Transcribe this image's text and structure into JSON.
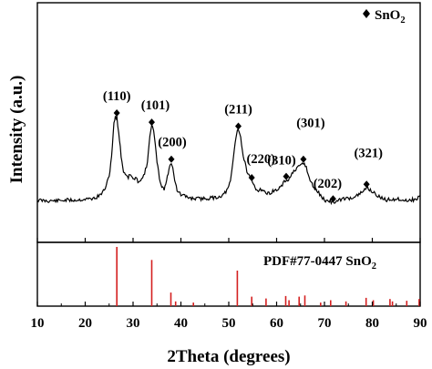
{
  "chart_data": [
    {
      "type": "line",
      "xlabel": "2Theta (degrees)",
      "ylabel": "Intensity (a.u.)",
      "xlim": [
        10,
        90
      ],
      "x_ticks": [
        "10",
        "20",
        "30",
        "40",
        "50",
        "60",
        "70",
        "80",
        "90"
      ],
      "legend": {
        "marker": "diamond",
        "label": "SnO",
        "subscript": "2",
        "position": "top-right"
      },
      "series": [
        {
          "x": [
            10,
            12,
            14,
            16,
            18,
            20,
            21,
            22,
            23,
            24,
            25,
            25.5,
            26,
            26.3,
            26.6,
            27,
            27.5,
            28,
            29,
            29.5,
            30,
            30.5,
            31,
            32,
            33,
            33.5,
            33.9,
            34.3,
            35,
            35.5,
            36,
            36.5,
            37,
            37.5,
            38,
            38.3,
            38.7,
            39.2,
            40,
            42,
            44,
            46,
            48,
            49,
            50,
            50.5,
            51,
            51.5,
            51.8,
            52.1,
            52.5,
            53,
            54,
            54.8,
            55.5,
            56,
            57,
            58,
            59,
            60,
            61,
            62,
            62.5,
            63,
            64,
            65,
            65.6,
            66.2,
            67,
            68,
            69,
            70,
            71,
            72,
            73,
            74,
            75,
            76,
            77,
            78,
            79,
            80,
            81,
            82,
            83,
            84,
            85,
            86,
            87,
            88,
            89,
            90
          ],
          "y": [
            0.85,
            0.8,
            0.8,
            0.85,
            0.85,
            0.92,
            0.95,
            1.0,
            1.2,
            1.6,
            2.6,
            4.2,
            6.6,
            7.2,
            7.1,
            6.0,
            4.2,
            3.0,
            2.6,
            2.8,
            2.4,
            2.5,
            2.3,
            2.5,
            3.6,
            5.8,
            6.5,
            6.1,
            3.8,
            2.5,
            1.9,
            1.7,
            2.3,
            3.2,
            3.7,
            3.4,
            2.4,
            1.6,
            1.25,
            1.0,
            0.95,
            1.0,
            1.1,
            1.3,
            1.8,
            2.6,
            4.2,
            5.6,
            6.2,
            6.2,
            5.6,
            4.2,
            2.8,
            2.3,
            1.8,
            1.6,
            1.7,
            1.3,
            1.5,
            1.6,
            1.9,
            2.4,
            2.3,
            2.8,
            3.1,
            3.5,
            3.7,
            3.3,
            2.3,
            1.7,
            1.3,
            0.85,
            0.75,
            0.7,
            0.8,
            1.0,
            0.95,
            1.1,
            1.2,
            1.5,
            1.8,
            1.5,
            1.2,
            1.0,
            0.85,
            0.95,
            0.9,
            0.95,
            0.8,
            0.9,
            0.85,
            1.2
          ]
        }
      ],
      "annotations": [
        {
          "label": "(110)",
          "x": 26.6,
          "y": 7.45
        },
        {
          "label": "(101)",
          "x": 33.9,
          "y": 6.75
        },
        {
          "label": "(200)",
          "x": 38.0,
          "y": 3.95
        },
        {
          "label": "(211)",
          "x": 52.0,
          "y": 6.45
        },
        {
          "label": "(220)",
          "x": 54.8,
          "y": 2.55
        },
        {
          "label": "(310)",
          "x": 62.0,
          "y": 2.65
        },
        {
          "label": "(301)",
          "x": 65.6,
          "y": 3.95
        },
        {
          "label": "(202)",
          "x": 71.8,
          "y": 0.95
        },
        {
          "label": "(321)",
          "x": 78.8,
          "y": 2.05
        }
      ]
    },
    {
      "type": "bar",
      "title": "PDF#77-0447 SnO",
      "title_subscript": "2",
      "bar_color": "#d42020",
      "xlim": [
        10,
        90
      ],
      "ylim": [
        0,
        100
      ],
      "x": [
        26.6,
        33.9,
        37.9,
        38.9,
        42.6,
        51.8,
        54.8,
        57.8,
        61.9,
        62.6,
        64.7,
        65.9,
        69.2,
        71.3,
        74.5,
        78.7,
        80.2,
        83.7,
        84.2,
        87.2,
        89.8
      ],
      "values": [
        100,
        78,
        23,
        8,
        6,
        60,
        16,
        13,
        17,
        10,
        16,
        18,
        6,
        10,
        8,
        14,
        10,
        12,
        8,
        9,
        12
      ]
    }
  ]
}
